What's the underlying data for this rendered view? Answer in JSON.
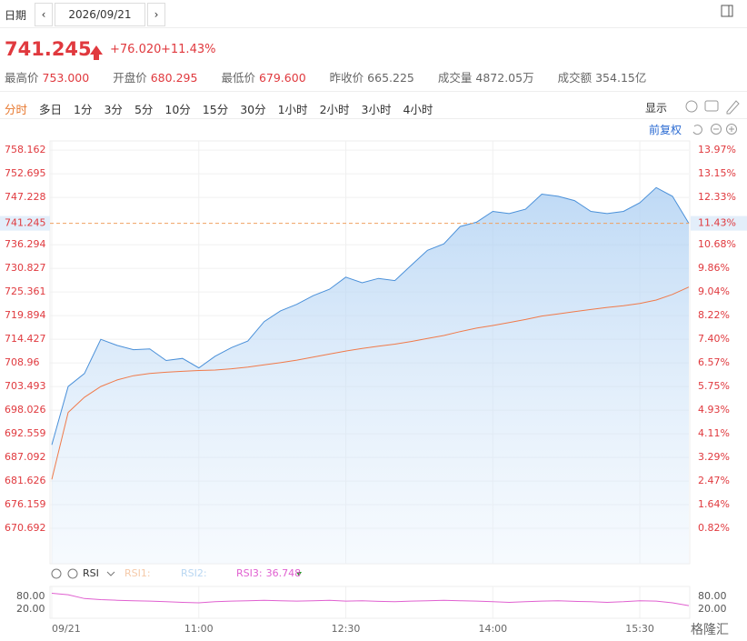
{
  "header": {
    "date_label": "日期",
    "date": "2026/09/21",
    "price": "741.245",
    "change": "+76.020",
    "change_pct": "+11.43%",
    "stats": [
      {
        "label": "最高价",
        "value": "753.000"
      },
      {
        "label": "开盘价",
        "value": "680.295"
      },
      {
        "label": "最低价",
        "value": "679.600"
      },
      {
        "label": "昨收价",
        "value": "665.225"
      },
      {
        "label": "成交量",
        "value": "4872.05万"
      },
      {
        "label": "成交额",
        "value": "354.15亿"
      }
    ]
  },
  "toolbar": {
    "periods": [
      "分时",
      "多日",
      "1分",
      "3分",
      "5分",
      "10分",
      "15分",
      "30分",
      "1小时",
      "2小时",
      "3小时",
      "4小时"
    ],
    "display": "显示",
    "adjust": "前复权"
  },
  "watermark": "格隆汇",
  "chart_data": [
    {
      "type": "line",
      "grid": true,
      "categories": [
        "09/21",
        null,
        null,
        null,
        null,
        null,
        null,
        null,
        null,
        "11:00",
        null,
        null,
        null,
        null,
        null,
        null,
        null,
        null,
        "12:30",
        null,
        null,
        null,
        null,
        null,
        null,
        null,
        null,
        "14:00",
        null,
        null,
        null,
        null,
        null,
        null,
        null,
        null,
        "15:30",
        null,
        null,
        null
      ],
      "ylim": [
        662.5,
        760.3
      ],
      "yticks": [
        670.692,
        676.159,
        681.626,
        687.092,
        692.559,
        698.026,
        703.493,
        708.96,
        714.427,
        719.894,
        725.361,
        730.827,
        736.294,
        747.228,
        752.695,
        758.162
      ],
      "y2lim": [
        -0.41,
        14.29
      ],
      "y2ticks": [
        {
          "value": 0.82,
          "label": "0.82%"
        },
        {
          "value": 1.64,
          "label": "1.64%"
        },
        {
          "value": 2.47,
          "label": "2.47%"
        },
        {
          "value": 3.29,
          "label": "3.29%"
        },
        {
          "value": 4.11,
          "label": "4.11%"
        },
        {
          "value": 4.93,
          "label": "4.93%"
        },
        {
          "value": 5.75,
          "label": "5.75%"
        },
        {
          "value": 6.57,
          "label": "6.57%"
        },
        {
          "value": 7.4,
          "label": "7.40%"
        },
        {
          "value": 8.22,
          "label": "8.22%"
        },
        {
          "value": 9.04,
          "label": "9.04%"
        },
        {
          "value": 9.86,
          "label": "9.86%"
        },
        {
          "value": 10.68,
          "label": "10.68%"
        },
        {
          "value": 12.33,
          "label": "12.33%"
        },
        {
          "value": 13.15,
          "label": "13.15%"
        },
        {
          "value": 13.97,
          "label": "13.97%"
        }
      ],
      "hline": {
        "value": 741.245,
        "y2": {
          "value": 11.43,
          "label": "11.43%"
        },
        "color": "#f0a060"
      },
      "series": [
        {
          "name": "price",
          "color": "#4a90d9",
          "values": [
            690.0,
            703.5,
            706.5,
            714.4,
            713.0,
            712.0,
            712.2,
            709.5,
            710.0,
            707.8,
            710.5,
            712.5,
            714.0,
            718.5,
            721.0,
            722.5,
            724.5,
            726.0,
            728.8,
            727.5,
            728.5,
            728.0,
            731.5,
            735.0,
            736.5,
            740.5,
            741.5,
            744.0,
            743.5,
            744.5,
            748.0,
            747.5,
            746.5,
            744.0,
            743.5,
            744.0,
            746.0,
            749.5,
            747.5,
            741.245
          ]
        },
        {
          "name": "average",
          "color": "#f07a4a",
          "values": [
            682.0,
            697.5,
            701.0,
            703.5,
            705.0,
            706.0,
            706.5,
            706.8,
            707.0,
            707.2,
            707.3,
            707.6,
            708.0,
            708.5,
            709.0,
            709.6,
            710.3,
            711.0,
            711.7,
            712.3,
            712.8,
            713.3,
            713.9,
            714.6,
            715.3,
            716.2,
            717.0,
            717.6,
            718.3,
            719.0,
            719.8,
            720.3,
            720.8,
            721.3,
            721.8,
            722.2,
            722.7,
            723.5,
            724.8,
            726.5
          ]
        }
      ]
    },
    {
      "type": "line",
      "indicator": "RSI",
      "inactive_series": [
        "RSI1:",
        "RSI2:"
      ],
      "ylim": [
        0,
        100
      ],
      "yticks": [
        {
          "value": 80,
          "label": "80.00"
        },
        {
          "value": 20,
          "label": "20.00"
        }
      ],
      "series": [
        {
          "name": "RSI3:",
          "color": "#e060d0",
          "values": [
            95,
            88,
            70,
            65,
            62,
            60,
            58,
            55,
            52,
            50,
            55,
            58,
            60,
            62,
            60,
            58,
            60,
            62,
            58,
            60,
            57,
            55,
            58,
            60,
            62,
            60,
            58,
            55,
            52,
            55,
            58,
            60,
            57,
            55,
            52,
            55,
            60,
            58,
            50,
            36.748
          ]
        }
      ]
    }
  ]
}
